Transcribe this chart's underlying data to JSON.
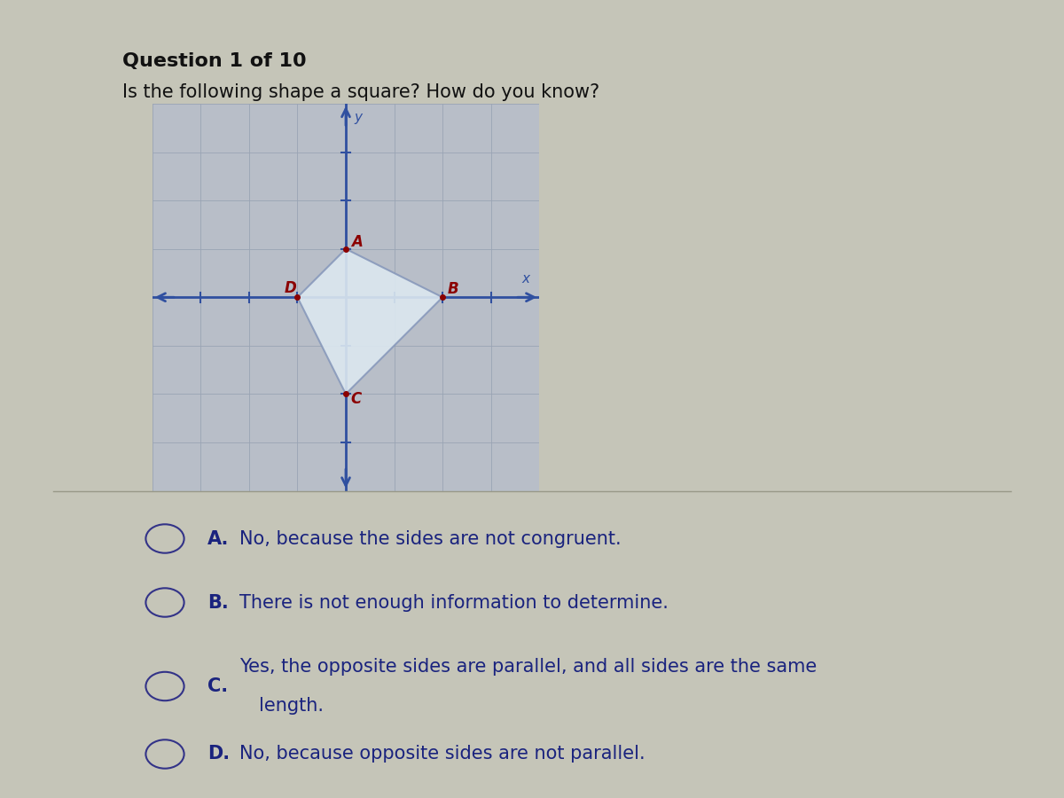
{
  "bg_color": "#c5c5b8",
  "title": "Question 1 of 10",
  "subtitle": "Is the following shape a square? How do you know?",
  "grid_bg": "#b8bec8",
  "grid_line_color": "#9aa4b4",
  "axis_color": "#3050a0",
  "shape_A": [
    0,
    1
  ],
  "shape_B": [
    2,
    0
  ],
  "shape_C": [
    0,
    -2
  ],
  "shape_D": [
    -1,
    0
  ],
  "shape_fill": "#dce8f0",
  "shape_edge": "#8899bb",
  "label_color": "#8b0000",
  "axis_label_x": "x",
  "axis_label_y": "y",
  "grid_xlim": [
    -4,
    4
  ],
  "grid_ylim": [
    -4,
    4
  ],
  "options": [
    {
      "letter": "A",
      "text": "No, because the sides are not congruent."
    },
    {
      "letter": "B",
      "text": "There is not enough information to determine."
    },
    {
      "letter": "C",
      "text": "Yes, the opposite sides are parallel, and all sides are the same\nlength."
    },
    {
      "letter": "D",
      "text": "No, because opposite sides are not parallel."
    }
  ],
  "option_text_color": "#1a237e",
  "option_font_size": 15,
  "title_font_size": 16,
  "subtitle_font_size": 15,
  "circle_color": "#333388",
  "options_bg": "#c8ccc0"
}
